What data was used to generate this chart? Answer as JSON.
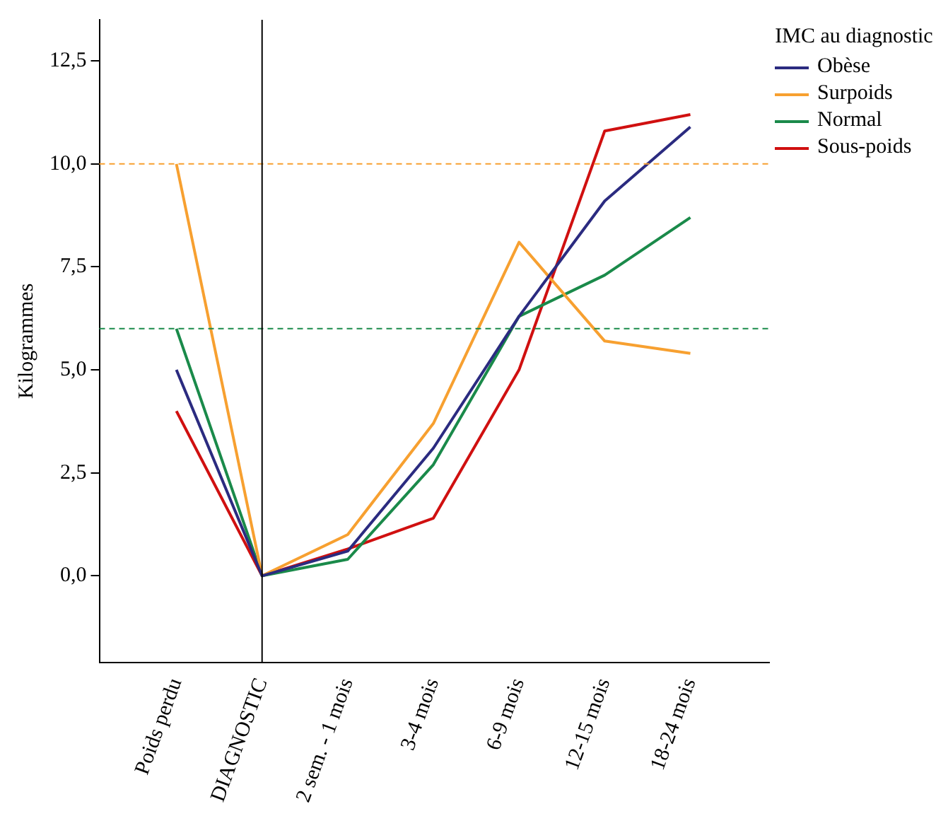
{
  "chart_data": {
    "type": "line",
    "ylabel": "Kilogrammes",
    "legend_title": "IMC au diagnostic",
    "categories": [
      "Poids perdu",
      "DIAGNOSTIC",
      "2 sem. - 1 mois",
      "3-4 mois",
      "6-9 mois",
      "12-15 mois",
      "18-24 mois"
    ],
    "series": [
      {
        "name": "Obèse",
        "color": "#2b2b80",
        "values": [
          5.0,
          0,
          0.6,
          3.1,
          6.3,
          9.1,
          10.9
        ]
      },
      {
        "name": "Surpoids",
        "color": "#f7a030",
        "values": [
          10.0,
          0,
          1.0,
          3.7,
          8.1,
          5.7,
          5.4
        ]
      },
      {
        "name": "Normal",
        "color": "#1a8a4a",
        "values": [
          6.0,
          0,
          0.4,
          2.7,
          6.3,
          7.3,
          8.7
        ]
      },
      {
        "name": "Sous-poids",
        "color": "#d01010",
        "values": [
          4.0,
          0,
          0.65,
          1.4,
          5.0,
          10.8,
          11.2
        ]
      }
    ],
    "ylim": [
      -2.1,
      13.5
    ],
    "yticks": [
      {
        "value": 0,
        "label": "0,0"
      },
      {
        "value": 2.5,
        "label": "2,5"
      },
      {
        "value": 5,
        "label": "5,0"
      },
      {
        "value": 7.5,
        "label": "7,5"
      },
      {
        "value": 10,
        "label": "10,0"
      },
      {
        "value": 12.5,
        "label": "12,5"
      }
    ],
    "ref_lines": [
      {
        "axis": "y",
        "value": 10,
        "color": "#f7a030",
        "line_style": "dashed"
      },
      {
        "axis": "y",
        "value": 6,
        "color": "#1a8a4a",
        "line_style": "dashed"
      },
      {
        "axis": "x",
        "value": "DIAGNOSTIC",
        "color": "#000000",
        "line_style": "solid"
      }
    ],
    "grid": false,
    "legend": "top right",
    "marker": "none",
    "line_style": "solid"
  }
}
